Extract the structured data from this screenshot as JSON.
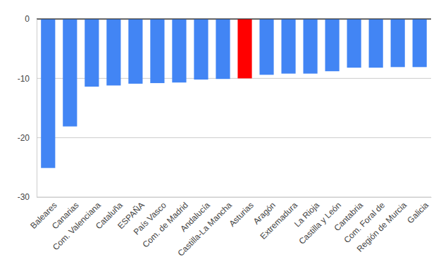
{
  "chart_data": {
    "type": "bar",
    "categories": [
      "Baleares",
      "Canarias",
      "Com. Valenciana",
      "Cataluña",
      "ESPAÑA",
      "País Vasco",
      "Com. de Madrid",
      "Andalucía",
      "Castilla-La Mancha",
      "Asturias",
      "Aragón",
      "Extremadura",
      "La Rioja",
      "Castilla y León",
      "Cantabria",
      "Com. Foral de",
      "Región de Murcia",
      "Galicia"
    ],
    "values": [
      -25.1,
      -18.1,
      -11.4,
      -11.2,
      -10.9,
      -10.8,
      -10.7,
      -10.2,
      -10.1,
      -10.0,
      -9.4,
      -9.2,
      -9.2,
      -8.8,
      -8.2,
      -8.2,
      -8.1,
      -8.1
    ],
    "colors": [
      "#4285f4",
      "#4285f4",
      "#4285f4",
      "#4285f4",
      "#4285f4",
      "#4285f4",
      "#4285f4",
      "#4285f4",
      "#4285f4",
      "#ff0000",
      "#4285f4",
      "#4285f4",
      "#4285f4",
      "#4285f4",
      "#4285f4",
      "#4285f4",
      "#4285f4",
      "#4285f4"
    ],
    "ylim": [
      -30,
      0
    ],
    "yticks": [
      -30,
      -20,
      -10,
      0
    ],
    "grid": true
  }
}
